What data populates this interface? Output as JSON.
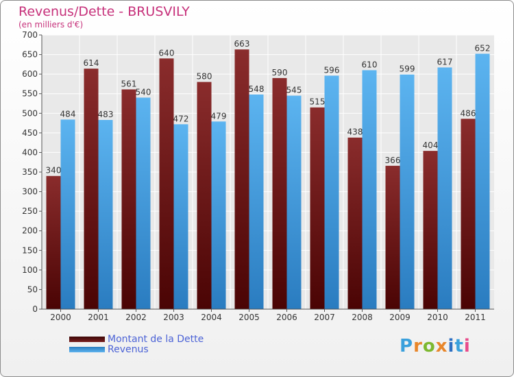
{
  "header": {
    "title": "Revenus/Dette - BRUSVILY",
    "subtitle": "(en milliers d'€)"
  },
  "chart_data": {
    "type": "bar",
    "title": "Revenus/Dette - BRUSVILY",
    "ylabel": "(en milliers d'€)",
    "ylim": [
      0,
      700
    ],
    "yticks": [
      0,
      50,
      100,
      150,
      200,
      250,
      300,
      350,
      400,
      450,
      500,
      550,
      600,
      650,
      700
    ],
    "grid": true,
    "legend_position": "bottom-left",
    "categories": [
      "2000",
      "2001",
      "2002",
      "2003",
      "2004",
      "2005",
      "2006",
      "2007",
      "2008",
      "2009",
      "2010",
      "2011"
    ],
    "series": [
      {
        "name": "Montant de la Dette",
        "color": "#7a1f1f",
        "values": [
          340,
          614,
          561,
          640,
          580,
          663,
          590,
          515,
          438,
          366,
          404,
          486
        ]
      },
      {
        "name": "Revenus",
        "color": "#4fa6e6",
        "values": [
          484,
          483,
          540,
          472,
          479,
          548,
          545,
          596,
          610,
          599,
          617,
          652
        ]
      }
    ]
  },
  "legend": {
    "items": [
      {
        "label": "Montant de la Dette",
        "color": "#7a1f1f"
      },
      {
        "label": "Revenus",
        "color": "#4fa6e6"
      }
    ]
  },
  "logo": {
    "text": "Proxiti",
    "colors": [
      "#3aa0dc",
      "#e8862a",
      "#7cb82f",
      "#e8862a",
      "#2d6fc2",
      "#3aa0dc",
      "#e84a8a"
    ]
  }
}
